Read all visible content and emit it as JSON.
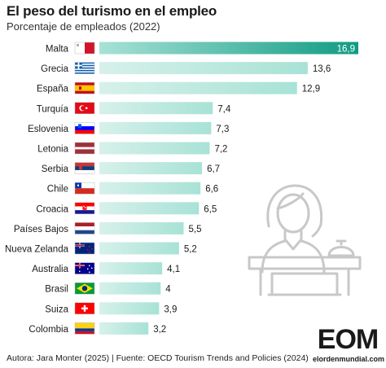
{
  "header": {
    "title": "El peso del turismo en el empleo",
    "subtitle": "Porcentaje de empleados (2022)"
  },
  "footer": {
    "credits": "Autora: Jara Monter (2025) | Fuente: OECD Tourism Trends and Policies (2024)"
  },
  "logo": {
    "mark": "EOM",
    "site": "elordenmundial.com"
  },
  "colors": {
    "bar_top": "#0f9b83",
    "bar_light": "#a8e2d6",
    "illustration": "#c8c8c8"
  },
  "chart_data": {
    "type": "bar",
    "orientation": "horizontal",
    "title": "El peso del turismo en el empleo",
    "subtitle": "Porcentaje de empleados (2022)",
    "categories": [
      "Malta",
      "Grecia",
      "España",
      "Turquía",
      "Eslovenia",
      "Letonia",
      "Serbia",
      "Chile",
      "Croacia",
      "Países Bajos",
      "Nueva Zelanda",
      "Australia",
      "Brasil",
      "Suiza",
      "Colombia"
    ],
    "values": [
      16.9,
      13.6,
      12.9,
      7.4,
      7.3,
      7.2,
      6.7,
      6.6,
      6.5,
      5.5,
      5.2,
      4.1,
      4.0,
      3.9,
      3.2
    ],
    "value_labels": [
      "16,9",
      "13,6",
      "12,9",
      "7,4",
      "7,3",
      "7,2",
      "6,7",
      "6,6",
      "6,5",
      "5,5",
      "5,2",
      "4,1",
      "4",
      "3,9",
      "3,2"
    ],
    "flags": [
      "malta-flag",
      "greece-flag",
      "spain-flag",
      "turkey-flag",
      "slovenia-flag",
      "latvia-flag",
      "serbia-flag",
      "chile-flag",
      "croatia-flag",
      "netherlands-flag",
      "new-zealand-flag",
      "australia-flag",
      "brazil-flag",
      "switzerland-flag",
      "colombia-flag"
    ],
    "xlim": [
      0,
      16.9
    ],
    "grid": false,
    "legend": "none"
  }
}
